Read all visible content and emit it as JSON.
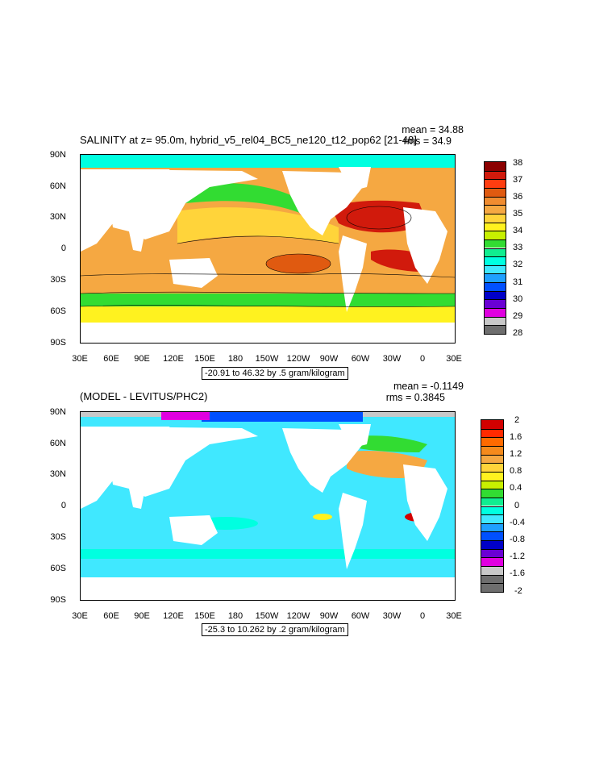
{
  "top": {
    "title": "SALINITY at z=  95.0m, hybrid_v5_rel04_BC5_ne120_t12_pop62 [21-48]",
    "mean": "mean = 34.88",
    "rms": "rms = 34.9",
    "range": "-20.91 to 46.32 by .5 gram/kilogram",
    "lat_labels": [
      "90N",
      "60N",
      "30N",
      "0",
      "30S",
      "60S",
      "90S"
    ],
    "lon_labels": [
      "30E",
      "60E",
      "90E",
      "120E",
      "150E",
      "180",
      "150W",
      "120W",
      "90W",
      "60W",
      "30W",
      "0",
      "30E"
    ],
    "colorbar_labels": [
      "38",
      "37",
      "36",
      "35",
      "34",
      "33",
      "32",
      "31",
      "30",
      "29",
      "28"
    ],
    "colorbar_colors": [
      "#8b0000",
      "#d11a0c",
      "#ff3d10",
      "#e05a10",
      "#f08c30",
      "#f5a842",
      "#ffd43a",
      "#fff21f",
      "#c8f000",
      "#32dc32",
      "#10ee90",
      "#00ffe0",
      "#40e8ff",
      "#1fa0ff",
      "#0050ff",
      "#0000c8",
      "#6a00d4",
      "#e000e0",
      "#c8c8c8",
      "#6e6e6e"
    ]
  },
  "bottom": {
    "title": "(MODEL - LEVITUS/PHC2)",
    "mean": "mean = -0.1149",
    "rms": "rms = 0.3845",
    "range": "-25.3 to 10.262 by .2 gram/kilogram",
    "lat_labels": [
      "90N",
      "60N",
      "30N",
      "0",
      "30S",
      "60S",
      "90S"
    ],
    "lon_labels": [
      "30E",
      "60E",
      "90E",
      "120E",
      "150E",
      "180",
      "150W",
      "120W",
      "90W",
      "60W",
      "30W",
      "0",
      "30E"
    ],
    "colorbar_labels": [
      "2",
      "1.6",
      "1.2",
      "0.8",
      "0.4",
      "0",
      "-0.4",
      "-0.8",
      "-1.2",
      "-1.6",
      "-2"
    ],
    "colorbar_colors": [
      "#d20000",
      "#ff2a00",
      "#ff6a00",
      "#f58a1c",
      "#f5a842",
      "#ffd43a",
      "#fff21f",
      "#c8f000",
      "#32dc32",
      "#10ee90",
      "#00ffe0",
      "#40e8ff",
      "#1fa0ff",
      "#0050ff",
      "#0000c8",
      "#6a00d4",
      "#e000e0",
      "#c8c8c8",
      "#6e6e6e",
      "#6e6e6e"
    ]
  },
  "colors": {
    "land": "#ffffff",
    "ocean_low_top": "#f5a842",
    "ocean_high_top": "#d11a0c",
    "diff_base": "#40e8ff"
  }
}
